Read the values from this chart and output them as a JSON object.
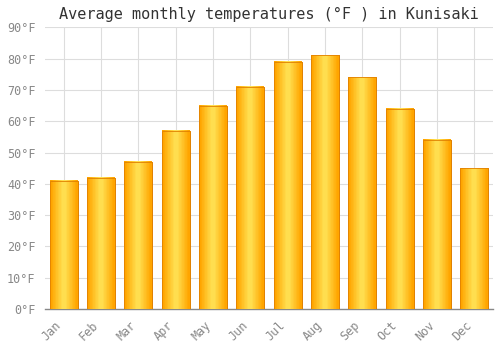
{
  "title": "Average monthly temperatures (°F ) in Kunisaki",
  "months": [
    "Jan",
    "Feb",
    "Mar",
    "Apr",
    "May",
    "Jun",
    "Jul",
    "Aug",
    "Sep",
    "Oct",
    "Nov",
    "Dec"
  ],
  "values": [
    41,
    42,
    47,
    57,
    65,
    71,
    79,
    81,
    74,
    64,
    54,
    45
  ],
  "bar_color_main": "#FFA500",
  "bar_color_edge": "#E08000",
  "background_color": "#FFFFFF",
  "plot_bg_color": "#FFFFFF",
  "grid_color": "#DDDDDD",
  "ylim": [
    0,
    90
  ],
  "yticks": [
    0,
    10,
    20,
    30,
    40,
    50,
    60,
    70,
    80,
    90
  ],
  "title_fontsize": 11,
  "tick_fontsize": 8.5,
  "bar_width": 0.75,
  "tick_color": "#888888",
  "label_color": "#888888"
}
